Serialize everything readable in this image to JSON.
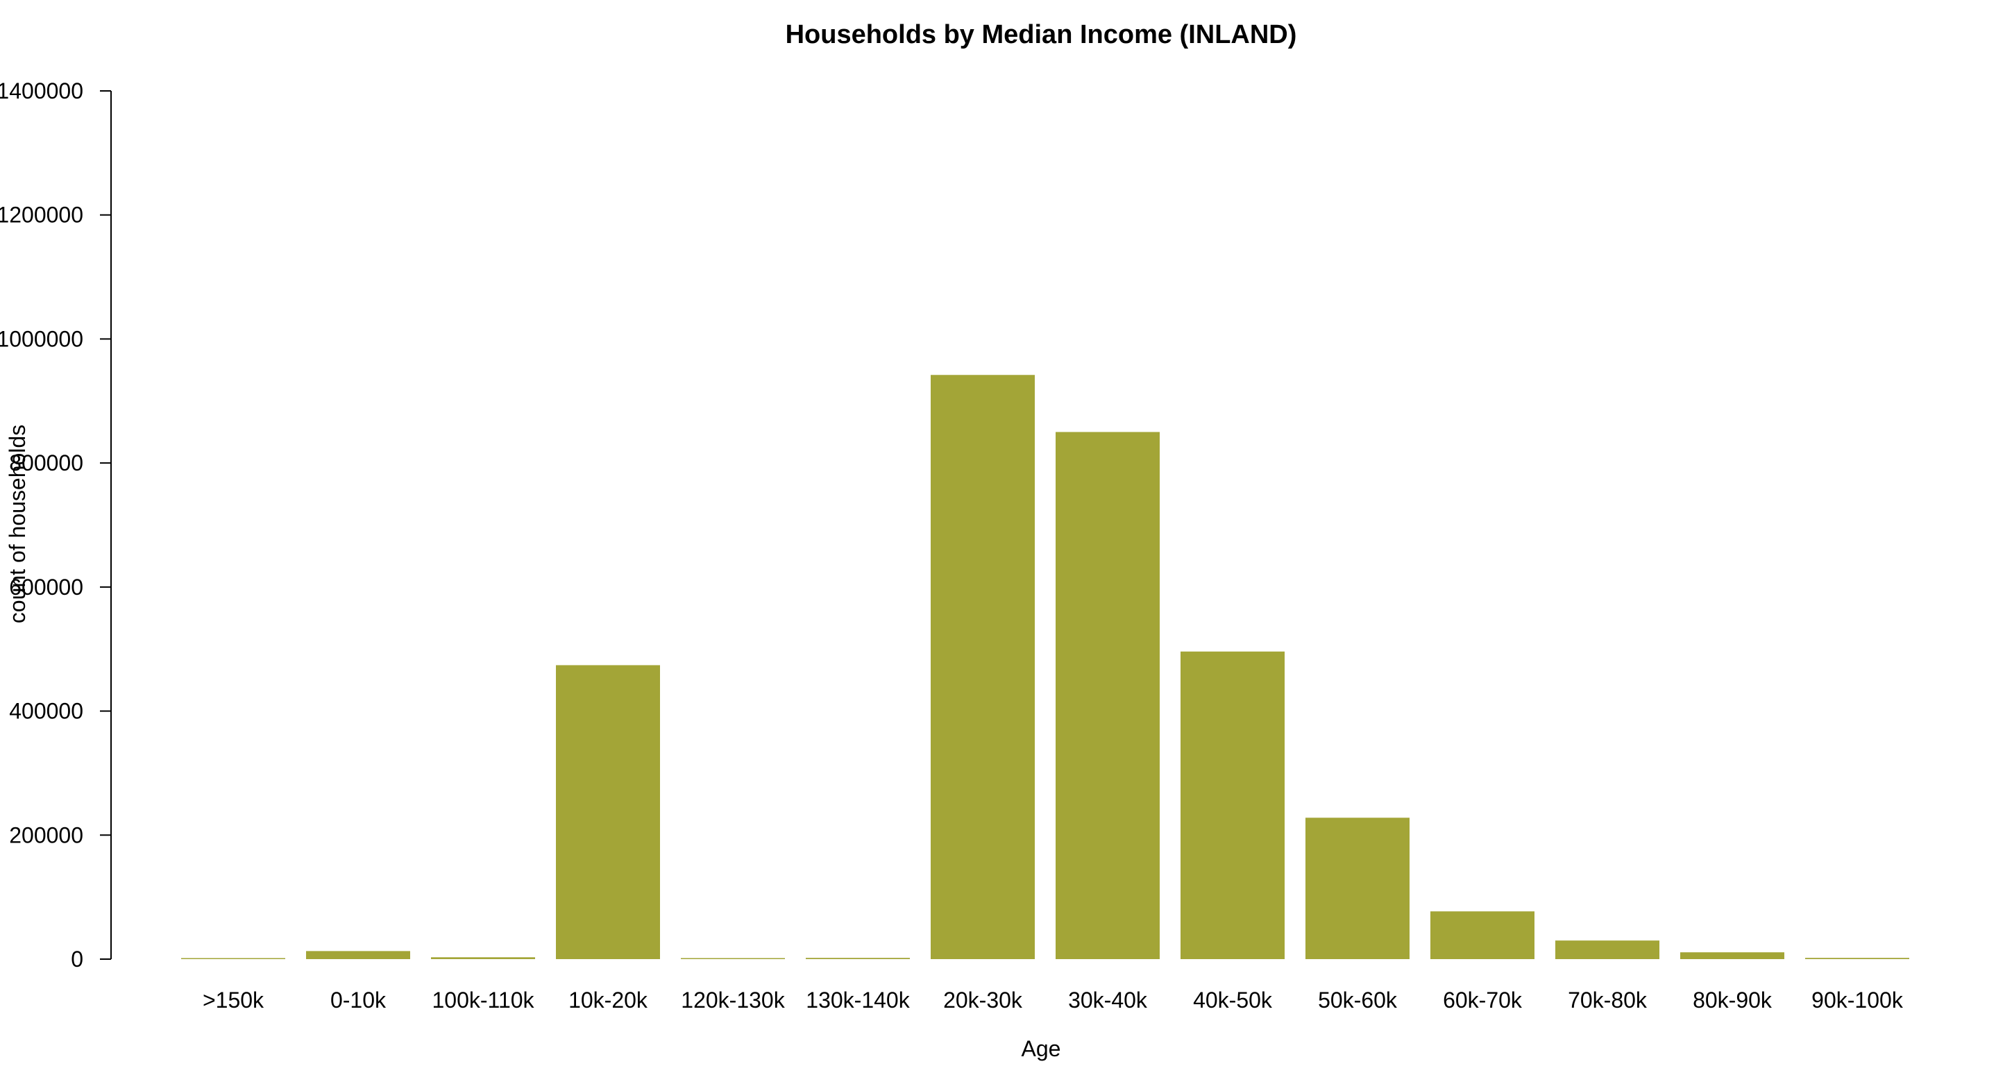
{
  "chart_data": {
    "type": "bar",
    "title": "Households by Median Income (INLAND)",
    "xlabel": "Age",
    "ylabel": "count of households",
    "categories": [
      ">150k",
      "0-10k",
      "100k-110k",
      "10k-20k",
      "120k-130k",
      "130k-140k",
      "20k-30k",
      "30k-40k",
      "40k-50k",
      "50k-60k",
      "60k-70k",
      "70k-80k",
      "80k-90k",
      "90k-100k"
    ],
    "values": [
      1000,
      13000,
      3000,
      474000,
      1000,
      2000,
      942000,
      850000,
      496000,
      228000,
      77000,
      30000,
      11000,
      2000
    ],
    "ylim": [
      0,
      1400000
    ],
    "yticks": [
      0,
      200000,
      400000,
      600000,
      800000,
      1000000,
      1200000,
      1400000
    ],
    "bar_color": "#a3a537",
    "grid": false,
    "legend": "none"
  }
}
